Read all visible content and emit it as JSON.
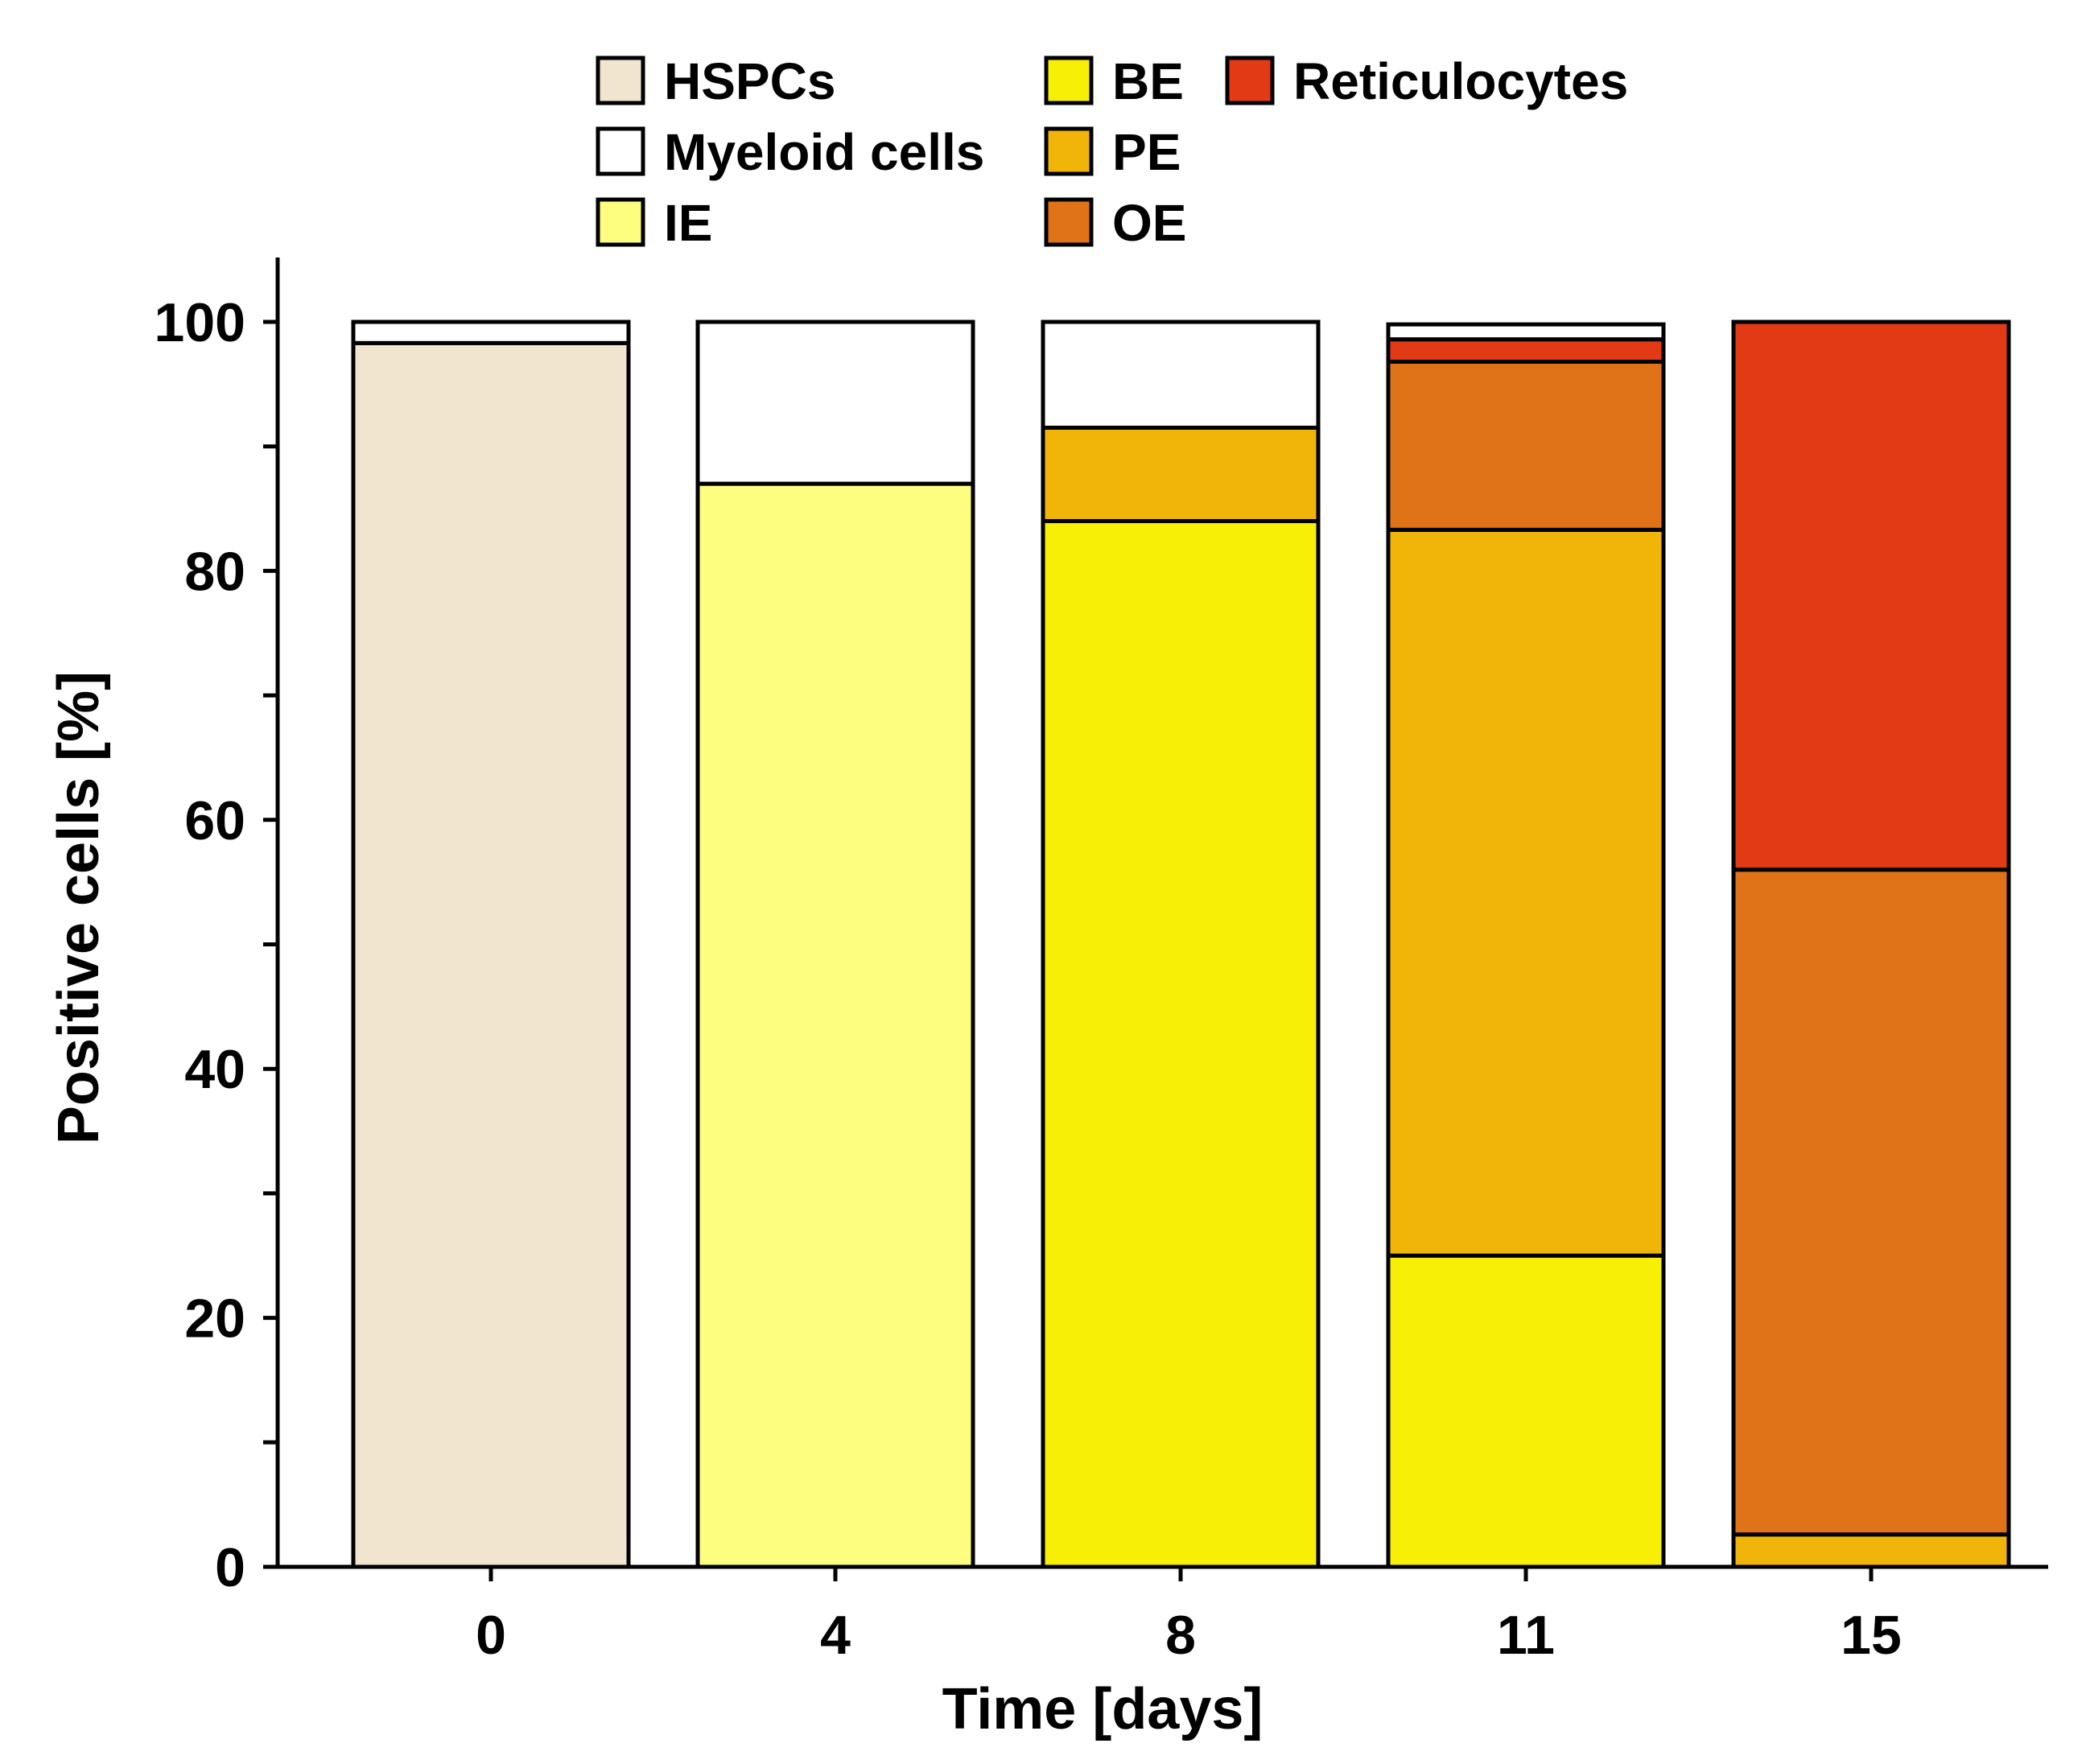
{
  "chart_data": {
    "type": "bar",
    "stacked": true,
    "title": "",
    "xlabel": "Time [days]",
    "ylabel": "Positive cells [%]",
    "ylim": [
      0,
      100
    ],
    "yticks": [
      0,
      20,
      40,
      60,
      80,
      100
    ],
    "categories": [
      "0",
      "4",
      "8",
      "11",
      "15"
    ],
    "series": [
      {
        "name": "HSPCs",
        "color": "#f1e5cf",
        "values": [
          98.3,
          0,
          0,
          0,
          0
        ]
      },
      {
        "name": "Myeloid cells",
        "color": "#ffffff",
        "values": [
          1.7,
          13,
          8.5,
          1.2,
          0
        ]
      },
      {
        "name": "IE",
        "color": "#fdfd80",
        "values": [
          0,
          87,
          0,
          0,
          0
        ]
      },
      {
        "name": "BE",
        "color": "#f7ef05",
        "values": [
          0,
          0,
          84,
          25,
          0
        ]
      },
      {
        "name": "PE",
        "color": "#f0b508",
        "values": [
          0,
          0,
          7.5,
          58.3,
          2.6
        ]
      },
      {
        "name": "OE",
        "color": "#e07318",
        "values": [
          0,
          0,
          0,
          13.5,
          53.4
        ]
      },
      {
        "name": "Reticulocytes",
        "color": "#e33a16",
        "values": [
          0,
          0,
          0,
          1.8,
          44
        ]
      }
    ],
    "stack_order": [
      "HSPCs",
      "IE",
      "BE",
      "PE",
      "OE",
      "Reticulocytes",
      "Myeloid cells"
    ],
    "legend": {
      "placement": "top",
      "columns": [
        [
          "HSPCs",
          "Myeloid cells",
          "IE"
        ],
        [
          "BE",
          "PE",
          "OE"
        ],
        [
          "Reticulocytes"
        ]
      ]
    }
  }
}
